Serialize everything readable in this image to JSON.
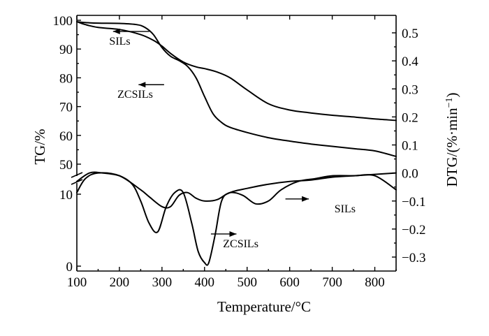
{
  "chart_data": {
    "type": "line",
    "x_label": "Temperature/°C",
    "x_ticks": [
      "100",
      "200",
      "300",
      "400",
      "500",
      "600",
      "700",
      "800"
    ],
    "xlim": [
      100,
      850
    ],
    "left_axis": {
      "label": "TG/%",
      "ticks": [
        "100",
        "90",
        "80",
        "70",
        "60",
        "50"
      ],
      "ylim": [
        47,
        100
      ]
    },
    "lower_left_axis": {
      "ticks": [
        "10",
        "0"
      ],
      "ylim": [
        0,
        14
      ]
    },
    "right_axis": {
      "label_main": "DTG/(%·min",
      "label_sup": "−1",
      "label_end": ")",
      "ticks": [
        "0.5",
        "0.4",
        "0.3",
        "0.2",
        "0.1",
        "0.0",
        "−0.1",
        "−0.2",
        "−0.3"
      ],
      "ylim": [
        -0.33,
        0.55
      ]
    },
    "series": [
      {
        "name": "SILs",
        "kind": "TG",
        "x": [
          100,
          120,
          150,
          200,
          250,
          280,
          300,
          320,
          350,
          380,
          400,
          430,
          460,
          500,
          550,
          600,
          650,
          700,
          750,
          800,
          850
        ],
        "y": [
          99.5,
          98.5,
          97.5,
          96.8,
          95,
          93,
          91,
          88.5,
          85.5,
          83.8,
          83.2,
          82,
          80,
          75.8,
          71,
          68.8,
          67.8,
          67,
          66.4,
          65.7,
          65.2
        ]
      },
      {
        "name": "ZCSILs",
        "kind": "TG",
        "x": [
          100,
          120,
          150,
          200,
          240,
          260,
          280,
          300,
          320,
          340,
          360,
          380,
          400,
          420,
          440,
          460,
          500,
          550,
          600,
          650,
          700,
          750,
          800,
          850
        ],
        "y": [
          99.5,
          99.2,
          99,
          98.9,
          98.5,
          97.5,
          95,
          90.5,
          87.5,
          86,
          84,
          80,
          73.5,
          67.5,
          64.5,
          62.8,
          61,
          59.2,
          58,
          57,
          56.2,
          55.4,
          54.6,
          52.7
        ]
      },
      {
        "name": "SILs",
        "kind": "DTG",
        "x": [
          100,
          120,
          150,
          200,
          250,
          270,
          300,
          320,
          340,
          360,
          380,
          400,
          430,
          460,
          490,
          520,
          550,
          580,
          620,
          660,
          700,
          750,
          800,
          850
        ],
        "y": [
          -0.07,
          -0.02,
          0.0,
          -0.01,
          -0.06,
          -0.085,
          -0.12,
          -0.12,
          -0.08,
          -0.07,
          -0.09,
          -0.1,
          -0.095,
          -0.07,
          -0.08,
          -0.11,
          -0.1,
          -0.06,
          -0.03,
          -0.02,
          -0.01,
          -0.01,
          -0.01,
          -0.06
        ]
      },
      {
        "name": "ZCSILs",
        "kind": "DTG",
        "x": [
          100,
          130,
          160,
          200,
          230,
          250,
          270,
          290,
          310,
          330,
          350,
          370,
          385,
          400,
          410,
          425,
          440,
          460,
          500,
          550,
          600,
          650,
          700,
          750,
          800,
          850
        ],
        "y": [
          -0.03,
          0.0,
          0.0,
          -0.01,
          -0.04,
          -0.1,
          -0.18,
          -0.21,
          -0.12,
          -0.07,
          -0.07,
          -0.18,
          -0.28,
          -0.32,
          -0.32,
          -0.22,
          -0.1,
          -0.07,
          -0.055,
          -0.04,
          -0.03,
          -0.025,
          -0.015,
          -0.01,
          -0.005,
          0.0
        ]
      }
    ],
    "annotations": [
      {
        "text": "SILs",
        "x": 201,
        "y": 91.5,
        "axis": "left",
        "arrow_from": 270,
        "arrow_to": 185
      },
      {
        "text": "ZCSILs",
        "x": 237,
        "y": 73,
        "axis": "left",
        "arrow_from": 305,
        "arrow_to": 245
      },
      {
        "text": "SILs",
        "x": 730,
        "y": -0.14,
        "axis": "right",
        "arrow_from": 590,
        "arrow_to": 645
      },
      {
        "text": "ZCSILs",
        "x": 485,
        "y": -0.265,
        "axis": "right",
        "arrow_from": 415,
        "arrow_to": 475
      }
    ]
  }
}
